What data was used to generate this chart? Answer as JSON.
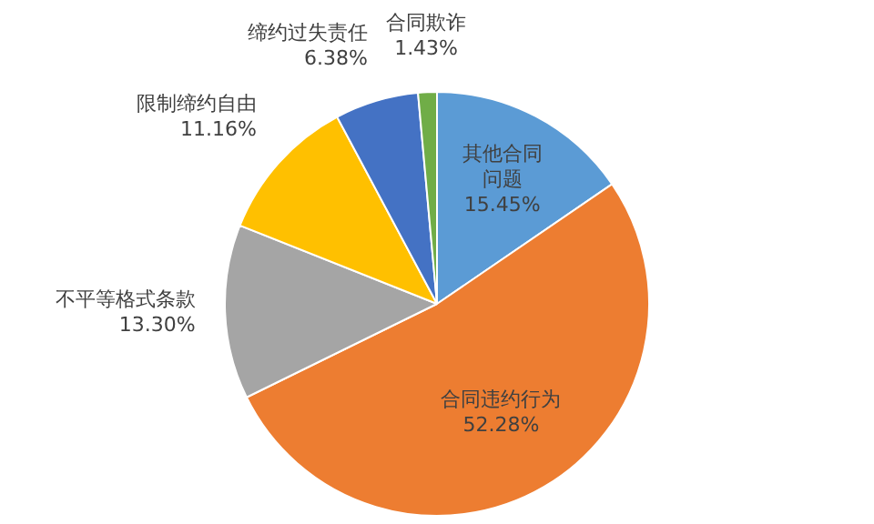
{
  "chart_data": {
    "type": "pie",
    "categories": [
      "其他合同问题",
      "合同违约行为",
      "不平等格式条款",
      "限制缔约自由",
      "缔约过失责任",
      "合同欺诈"
    ],
    "values": [
      15.45,
      52.28,
      13.3,
      11.16,
      6.38,
      1.43
    ],
    "value_labels": [
      "15.45%",
      "52.28%",
      "13.30%",
      "11.16%",
      "6.38%",
      "1.43%"
    ],
    "colors": [
      "#5b9bd5",
      "#ed7d31",
      "#a5a5a5",
      "#ffc000",
      "#4472c4",
      "#70ad47"
    ],
    "legend": false
  }
}
